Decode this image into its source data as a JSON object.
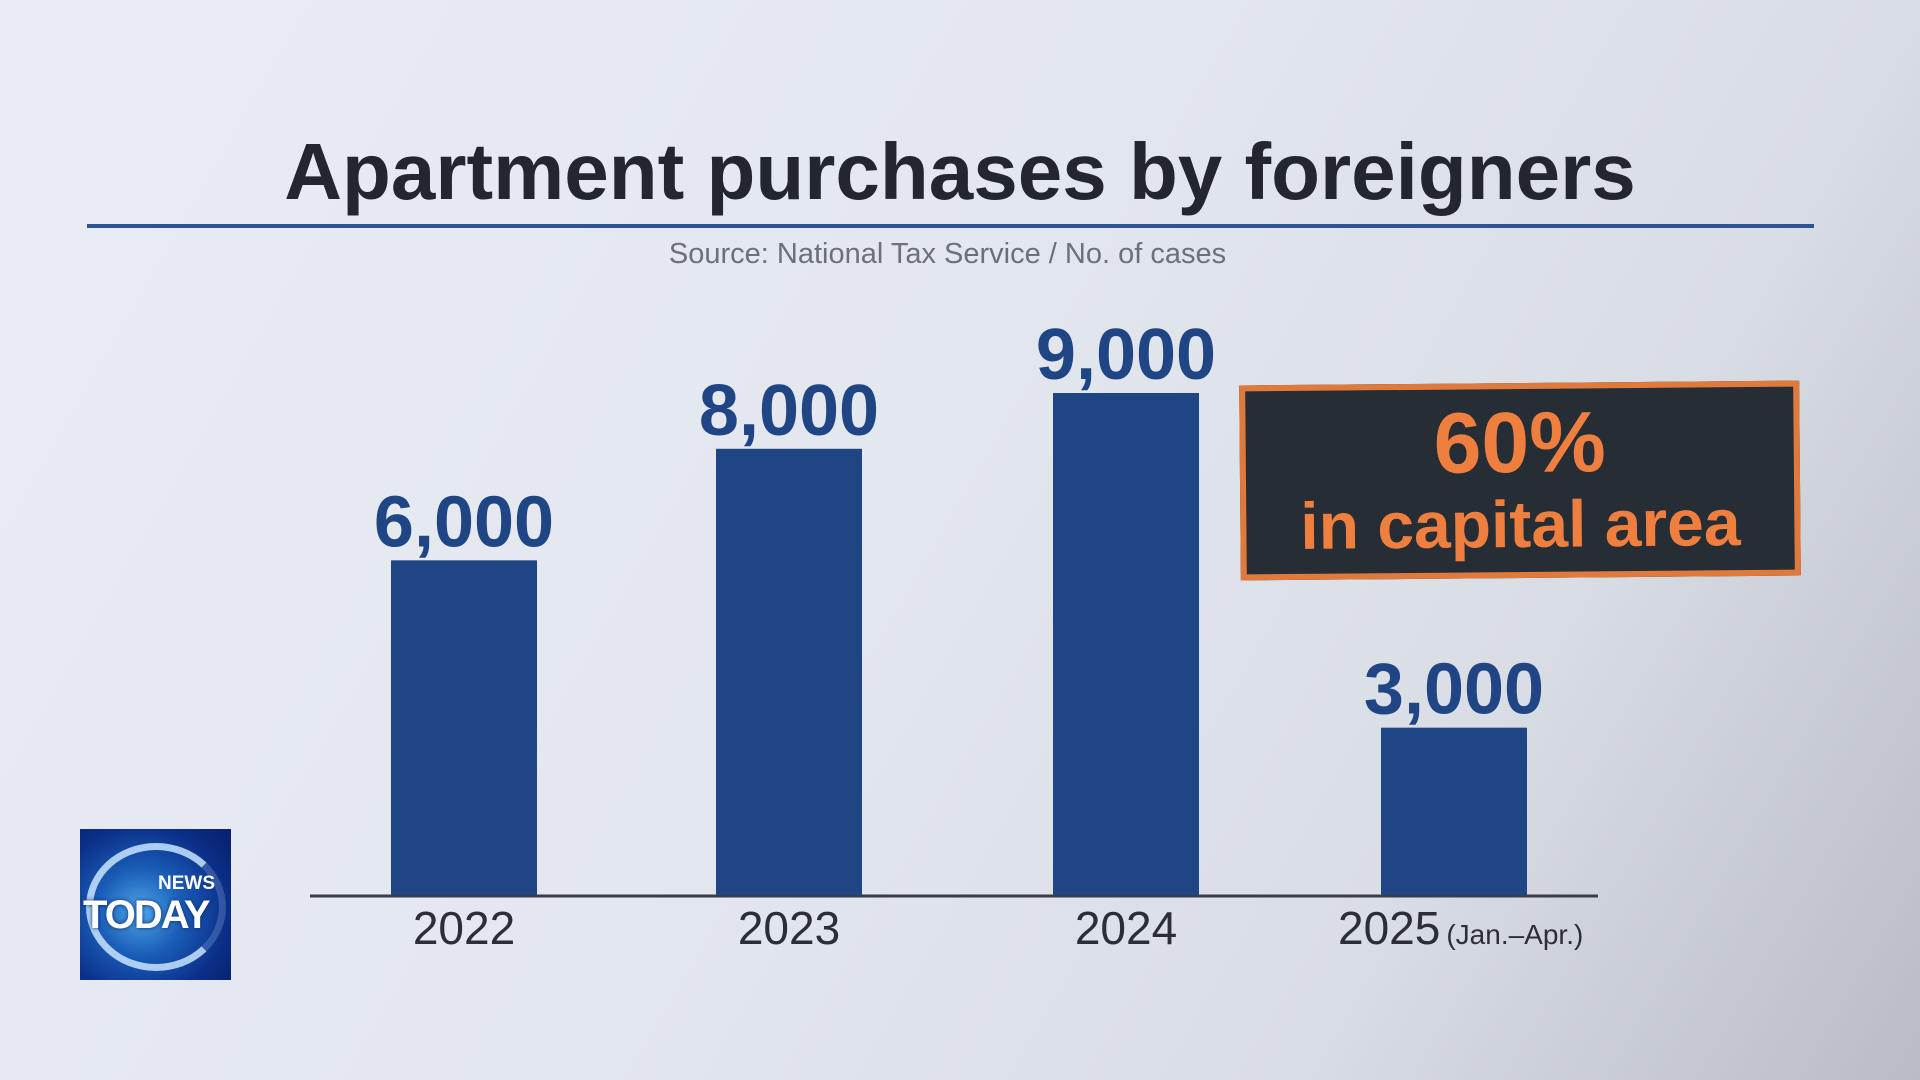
{
  "chart_data": {
    "type": "bar",
    "title": "Apartment purchases by foreigners",
    "subtitle": "Source: National Tax Service / No. of cases",
    "categories": [
      "2022",
      "2023",
      "2024",
      "2025"
    ],
    "category_notes": [
      "",
      "",
      "",
      "(Jan.–Apr.)"
    ],
    "values": [
      6000,
      8000,
      9000,
      3000
    ],
    "value_labels": [
      "6,000",
      "8,000",
      "9,000",
      "3,000"
    ],
    "ylim": [
      0,
      9000
    ],
    "grid": false,
    "bar_color": "#1f4585",
    "label_color": "#1f4585",
    "annotation": {
      "line1": "60%",
      "line2": "in capital area",
      "color": "#ef7f3e",
      "background": "#262d35"
    }
  },
  "logo": {
    "top_text": "NEWS",
    "main_text": "TODAY"
  }
}
